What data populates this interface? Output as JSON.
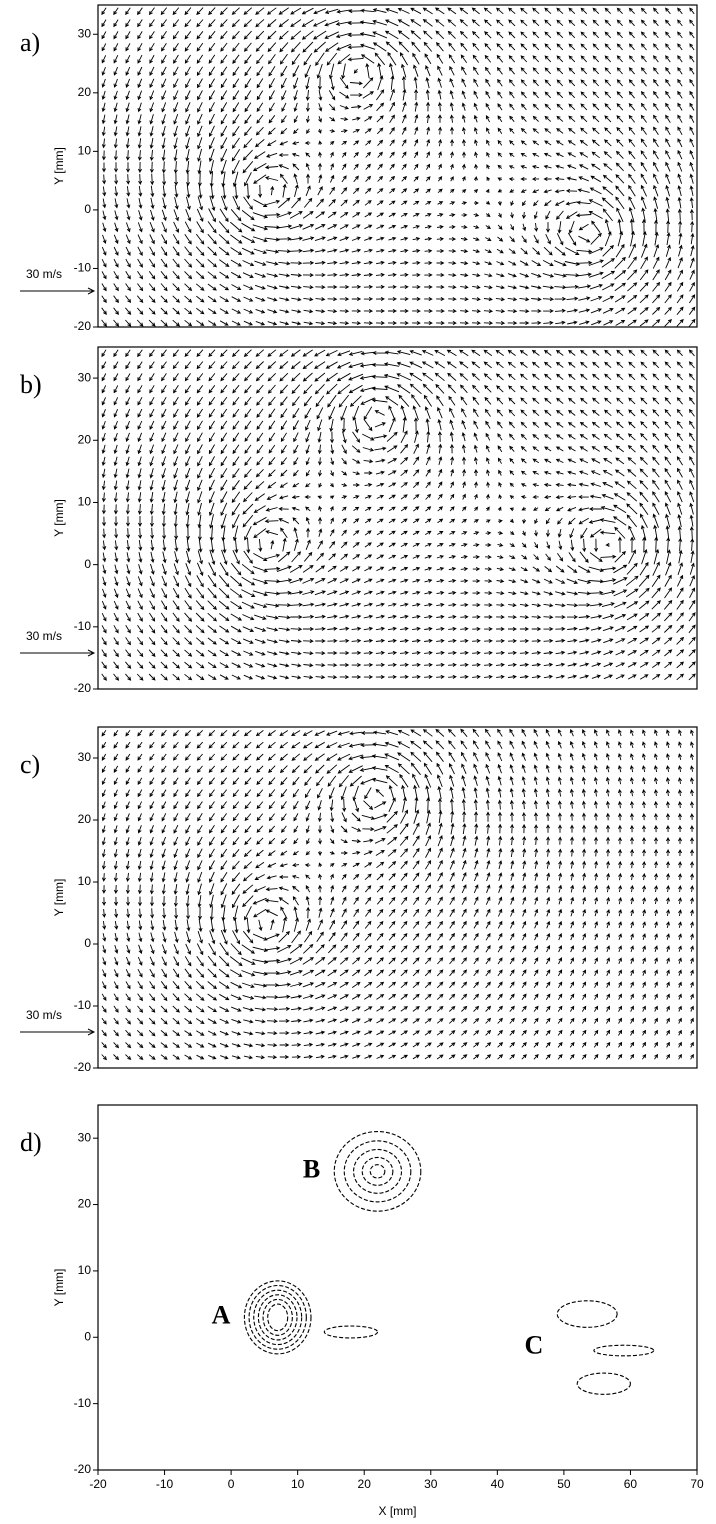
{
  "chart_data": [
    {
      "type": "quiver",
      "panel_label": "a)",
      "ylabel": "Y [mm]",
      "reference_label": "30 m/s",
      "xlim": [
        -20,
        70
      ],
      "ylim": [
        -20,
        35
      ],
      "yticks": [
        -20,
        -10,
        0,
        10,
        20,
        30
      ],
      "vortices": [
        {
          "x": 5,
          "y": 3
        },
        {
          "x": 19,
          "y": 24
        },
        {
          "x": 54,
          "y": -4
        }
      ]
    },
    {
      "type": "quiver",
      "panel_label": "b)",
      "ylabel": "Y [mm]",
      "reference_label": "30 m/s",
      "xlim": [
        -20,
        70
      ],
      "ylim": [
        -20,
        35
      ],
      "yticks": [
        -20,
        -10,
        0,
        10,
        20,
        30
      ],
      "vortices": [
        {
          "x": 5,
          "y": 3
        },
        {
          "x": 22,
          "y": 24
        },
        {
          "x": 57,
          "y": 3
        }
      ]
    },
    {
      "type": "quiver",
      "panel_label": "c)",
      "ylabel": "Y [mm]",
      "reference_label": "30 m/s",
      "xlim": [
        -20,
        70
      ],
      "ylim": [
        -20,
        35
      ],
      "yticks": [
        -20,
        -10,
        0,
        10,
        20,
        30
      ],
      "vortices": [
        {
          "x": 5,
          "y": 3
        },
        {
          "x": 22,
          "y": 24
        }
      ]
    },
    {
      "type": "contour",
      "panel_label": "d)",
      "ylabel": "Y [mm]",
      "xlabel": "X [mm]",
      "xlim": [
        -20,
        70
      ],
      "ylim": [
        -20,
        35
      ],
      "yticks": [
        -20,
        -10,
        0,
        10,
        20,
        30
      ],
      "xticks": [
        -20,
        -10,
        0,
        10,
        20,
        30,
        40,
        50,
        60,
        70
      ],
      "contours": [
        {
          "label": "A",
          "ellipses": [
            {
              "cx": 7,
              "cy": 3,
              "rx": 5,
              "ry": 5.5
            },
            {
              "cx": 7,
              "cy": 3,
              "rx": 4.3,
              "ry": 4.8
            },
            {
              "cx": 7,
              "cy": 3,
              "rx": 3.6,
              "ry": 4.1
            },
            {
              "cx": 7,
              "cy": 3,
              "rx": 2.9,
              "ry": 3.4
            },
            {
              "cx": 7,
              "cy": 3,
              "rx": 2.2,
              "ry": 2.7
            },
            {
              "cx": 7,
              "cy": 3,
              "rx": 1.5,
              "ry": 2
            }
          ]
        },
        {
          "ellipses": [
            {
              "cx": 18,
              "cy": 0.8,
              "rx": 4,
              "ry": 0.9
            }
          ]
        },
        {
          "label": "B",
          "ellipses": [
            {
              "cx": 22,
              "cy": 25,
              "rx": 6.5,
              "ry": 6
            },
            {
              "cx": 22,
              "cy": 25,
              "rx": 5,
              "ry": 4.6
            },
            {
              "cx": 22,
              "cy": 25,
              "rx": 3.6,
              "ry": 3.3
            },
            {
              "cx": 22,
              "cy": 25,
              "rx": 2.3,
              "ry": 2.1
            },
            {
              "cx": 22,
              "cy": 25,
              "rx": 1.1,
              "ry": 1
            }
          ]
        },
        {
          "label": "C",
          "ellipses": [
            {
              "cx": 53.5,
              "cy": 3.5,
              "rx": 4.5,
              "ry": 2
            },
            {
              "cx": 59,
              "cy": -2,
              "rx": 4.5,
              "ry": 0.8
            },
            {
              "cx": 56,
              "cy": -7,
              "rx": 4,
              "ry": 1.6
            }
          ]
        }
      ]
    }
  ]
}
